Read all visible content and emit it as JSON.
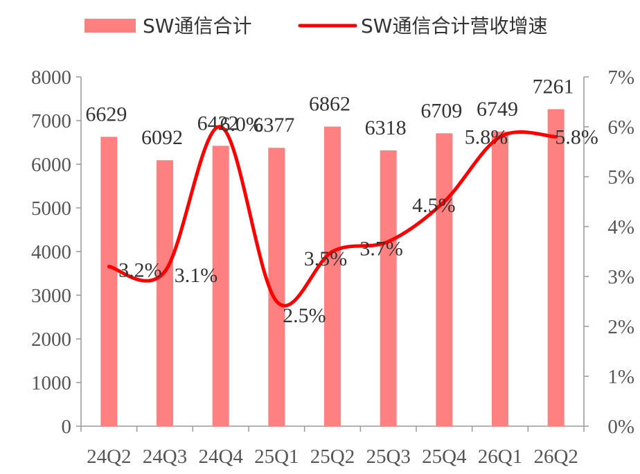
{
  "chart_data": {
    "type": "bar",
    "title": "",
    "categories": [
      "24Q2",
      "24Q3",
      "24Q4",
      "25Q1",
      "25Q2",
      "25Q3",
      "25Q4",
      "26Q1",
      "26Q2"
    ],
    "series": [
      {
        "name": "SW通信合计",
        "type": "bar",
        "axis": "left",
        "values": [
          6629,
          6092,
          6422,
          6377,
          6862,
          6318,
          6709,
          6749,
          7261
        ],
        "labels": [
          "6629",
          "6092",
          "6422",
          "6377",
          "6862",
          "6318",
          "6709",
          "6749",
          "7261"
        ]
      },
      {
        "name": "SW通信合计营收增速",
        "type": "line",
        "axis": "right",
        "values": [
          3.2,
          3.1,
          6.0,
          2.5,
          3.5,
          3.7,
          4.5,
          5.8,
          5.8
        ],
        "labels": [
          "3.2%",
          "3.1%",
          "6.0%",
          "2.5%",
          "3.5%",
          "3.7%",
          "4.5%",
          "5.8%",
          "5.8%"
        ]
      }
    ],
    "y_left": {
      "min": 0,
      "max": 8000,
      "ticks": [
        "0",
        "1000",
        "2000",
        "3000",
        "4000",
        "5000",
        "6000",
        "7000",
        "8000"
      ]
    },
    "y_right": {
      "min": 0,
      "max": 7,
      "ticks": [
        "0%",
        "1%",
        "2%",
        "3%",
        "4%",
        "5%",
        "6%",
        "7%"
      ]
    },
    "legend_position": "top",
    "grid": false,
    "colors": {
      "bar": "#ff8080",
      "line": "#ff0000",
      "axis": "#999999"
    }
  }
}
